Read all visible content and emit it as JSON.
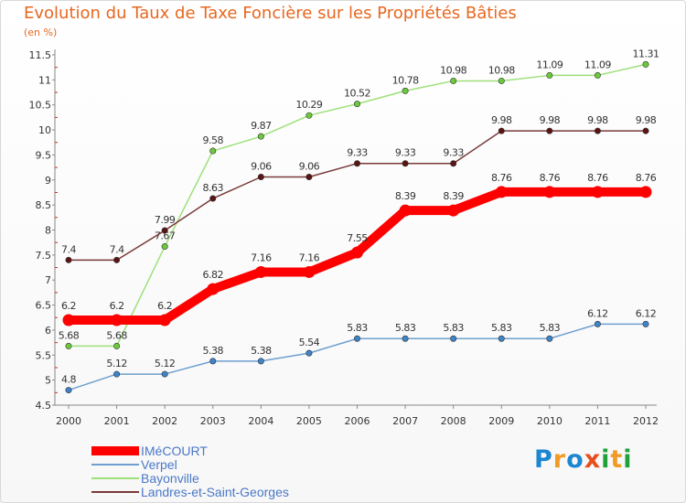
{
  "title": "Evolution du Taux de Taxe Foncière sur les Propriétés Bâties",
  "subtitle": "(en %)",
  "logo": {
    "text": "Proxiti",
    "colors": [
      "#1b86d1",
      "#f19b26",
      "#1b86d1",
      "#e84e1c",
      "#1fa03a",
      "#f19b26",
      "#1fa03a"
    ]
  },
  "chart_data": {
    "type": "line",
    "x": [
      "2000",
      "2001",
      "2002",
      "2003",
      "2004",
      "2005",
      "2006",
      "2007",
      "2008",
      "2009",
      "2010",
      "2011",
      "2012"
    ],
    "ylim": [
      4.5,
      11.5
    ],
    "yticks": [
      "4.5",
      "5",
      "5.5",
      "6",
      "6.5",
      "7",
      "7.5",
      "8",
      "8.5",
      "9",
      "9.5",
      "10",
      "10.5",
      "11",
      "11.5"
    ],
    "grid": false,
    "legend_placement": "bottom-left",
    "series": [
      {
        "name": "IMéCOURT",
        "color": "#ff0000",
        "marker": "#ff0000",
        "emphasis": true,
        "values": [
          6.2,
          6.2,
          6.2,
          6.82,
          7.16,
          7.16,
          7.55,
          8.39,
          8.39,
          8.76,
          8.76,
          8.76,
          8.76
        ],
        "labels": [
          "6.2",
          "6.2",
          "6.2",
          "6.82",
          "7.16",
          "7.16",
          "7.55",
          "8.39",
          "8.39",
          "8.76",
          "8.76",
          "8.76",
          "8.76"
        ]
      },
      {
        "name": "Verpel",
        "color": "#6f9fd0",
        "marker": "#3f83c9",
        "values": [
          4.8,
          5.12,
          5.12,
          5.38,
          5.38,
          5.54,
          5.83,
          5.83,
          5.83,
          5.83,
          5.83,
          6.12,
          6.12
        ],
        "labels": [
          "4.8",
          "5.12",
          "5.12",
          "5.38",
          "5.38",
          "5.54",
          "5.83",
          "5.83",
          "5.83",
          "5.83",
          "5.83",
          "6.12",
          "6.12"
        ]
      },
      {
        "name": "Bayonville",
        "color": "#9ee07a",
        "marker": "#6cc93c",
        "values": [
          5.68,
          5.68,
          7.67,
          9.58,
          9.87,
          10.29,
          10.52,
          10.78,
          10.98,
          10.98,
          11.09,
          11.09,
          11.31
        ],
        "labels": [
          "5.68",
          "5.68",
          "7.67",
          "9.58",
          "9.87",
          "10.29",
          "10.52",
          "10.78",
          "10.98",
          "10.98",
          "11.09",
          "11.09",
          "11.31"
        ]
      },
      {
        "name": "Landres-et-Saint-Georges",
        "color": "#7a3a3a",
        "marker": "#5a1414",
        "values": [
          7.4,
          7.4,
          7.99,
          8.63,
          9.06,
          9.06,
          9.33,
          9.33,
          9.33,
          9.98,
          9.98,
          9.98,
          9.98
        ],
        "labels": [
          "7.4",
          "7.4",
          "7.99",
          "8.63",
          "9.06",
          "9.06",
          "9.33",
          "9.33",
          "9.33",
          "9.98",
          "9.98",
          "9.98",
          "9.98"
        ]
      }
    ]
  }
}
